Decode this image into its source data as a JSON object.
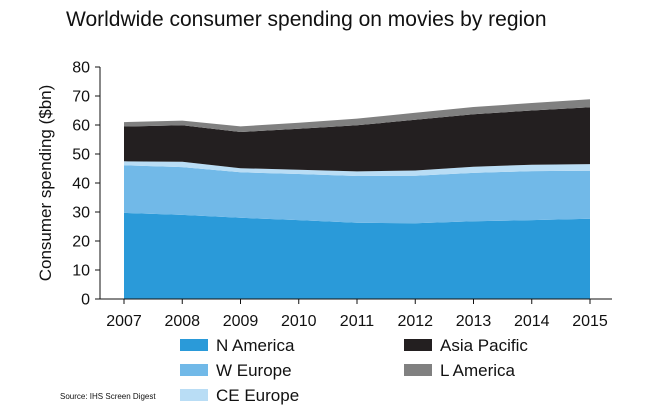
{
  "chart_data": {
    "type": "area",
    "stacked": true,
    "title": "Worldwide consumer spending on movies by region",
    "ylabel": "Consumer spending  ($bn)",
    "xlabel": "",
    "ylim": [
      0,
      80
    ],
    "yticks": [
      0,
      10,
      20,
      30,
      40,
      50,
      60,
      70,
      80
    ],
    "x": [
      "2007",
      "2008",
      "2009",
      "2010",
      "2011",
      "2012",
      "2013",
      "2014",
      "2015"
    ],
    "series": [
      {
        "name": "N America",
        "color": "#2a9ad9",
        "values": [
          29.7,
          29.0,
          28.0,
          27.2,
          26.3,
          26.1,
          26.8,
          27.2,
          27.7
        ]
      },
      {
        "name": "W Europe",
        "color": "#71b9e8",
        "values": [
          16.4,
          16.5,
          15.7,
          15.9,
          16.1,
          16.4,
          16.7,
          16.9,
          16.5
        ]
      },
      {
        "name": "CE Europe",
        "color": "#b9ddf5",
        "values": [
          1.4,
          1.8,
          1.4,
          1.5,
          1.6,
          1.8,
          2.1,
          2.2,
          2.3
        ]
      },
      {
        "name": "Asia Pacific",
        "color": "#231f20",
        "values": [
          12.0,
          12.6,
          12.5,
          14.1,
          15.9,
          17.5,
          18.1,
          18.7,
          19.6
        ]
      },
      {
        "name": "L America",
        "color": "#808080",
        "values": [
          1.5,
          1.6,
          1.9,
          2.1,
          2.3,
          2.4,
          2.5,
          2.6,
          2.8
        ]
      }
    ],
    "grid": false,
    "legend": {
      "placement": "bottom",
      "columns": 2
    }
  },
  "source": "Source: IHS Screen Digest"
}
